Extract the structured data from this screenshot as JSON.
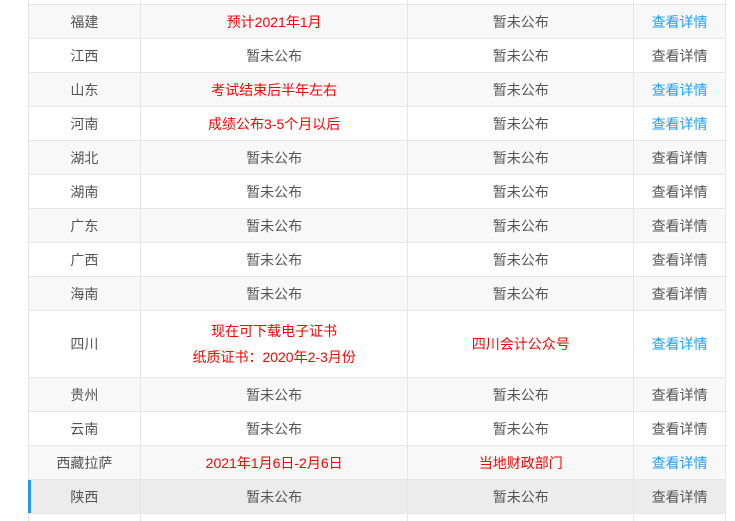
{
  "colors": {
    "text": "#555555",
    "red_text": "#ff0000",
    "link_blue": "#1e9fff",
    "border": "#e6e6e6",
    "row_shade": "#f8f8f8",
    "selected_bg": "#ececec",
    "selected_bar": "#2196f3"
  },
  "table": {
    "link_label": "查看详情",
    "rows": [
      {
        "province": "福建",
        "time": [
          "预计2021年1月"
        ],
        "time_red": true,
        "place": "暂未公布",
        "place_red": false,
        "link_active": true,
        "selected": false
      },
      {
        "province": "江西",
        "time": [
          "暂未公布"
        ],
        "time_red": false,
        "place": "暂未公布",
        "place_red": false,
        "link_active": false,
        "selected": false
      },
      {
        "province": "山东",
        "time": [
          "考试结束后半年左右"
        ],
        "time_red": true,
        "place": "暂未公布",
        "place_red": false,
        "link_active": true,
        "selected": false
      },
      {
        "province": "河南",
        "time": [
          "成绩公布3-5个月以后"
        ],
        "time_red": true,
        "place": "暂未公布",
        "place_red": false,
        "link_active": true,
        "selected": false
      },
      {
        "province": "湖北",
        "time": [
          "暂未公布"
        ],
        "time_red": false,
        "place": "暂未公布",
        "place_red": false,
        "link_active": false,
        "selected": false
      },
      {
        "province": "湖南",
        "time": [
          "暂未公布"
        ],
        "time_red": false,
        "place": "暂未公布",
        "place_red": false,
        "link_active": false,
        "selected": false
      },
      {
        "province": "广东",
        "time": [
          "暂未公布"
        ],
        "time_red": false,
        "place": "暂未公布",
        "place_red": false,
        "link_active": false,
        "selected": false
      },
      {
        "province": "广西",
        "time": [
          "暂未公布"
        ],
        "time_red": false,
        "place": "暂未公布",
        "place_red": false,
        "link_active": false,
        "selected": false
      },
      {
        "province": "海南",
        "time": [
          "暂未公布"
        ],
        "time_red": false,
        "place": "暂未公布",
        "place_red": false,
        "link_active": false,
        "selected": false
      },
      {
        "province": "四川",
        "time": [
          "现在可下载电子证书",
          "纸质证书：2020年2-3月份"
        ],
        "time_red": true,
        "place": "四川会计公众号",
        "place_red": true,
        "link_active": true,
        "selected": false
      },
      {
        "province": "贵州",
        "time": [
          "暂未公布"
        ],
        "time_red": false,
        "place": "暂未公布",
        "place_red": false,
        "link_active": false,
        "selected": false
      },
      {
        "province": "云南",
        "time": [
          "暂未公布"
        ],
        "time_red": false,
        "place": "暂未公布",
        "place_red": false,
        "link_active": false,
        "selected": false
      },
      {
        "province": "西藏拉萨",
        "time": [
          "2021年1月6日-2月6日"
        ],
        "time_red": true,
        "place": "当地财政部门",
        "place_red": true,
        "link_active": true,
        "selected": false
      },
      {
        "province": "陕西",
        "time": [
          "暂未公布"
        ],
        "time_red": false,
        "place": "暂未公布",
        "place_red": false,
        "link_active": false,
        "selected": true
      }
    ]
  }
}
